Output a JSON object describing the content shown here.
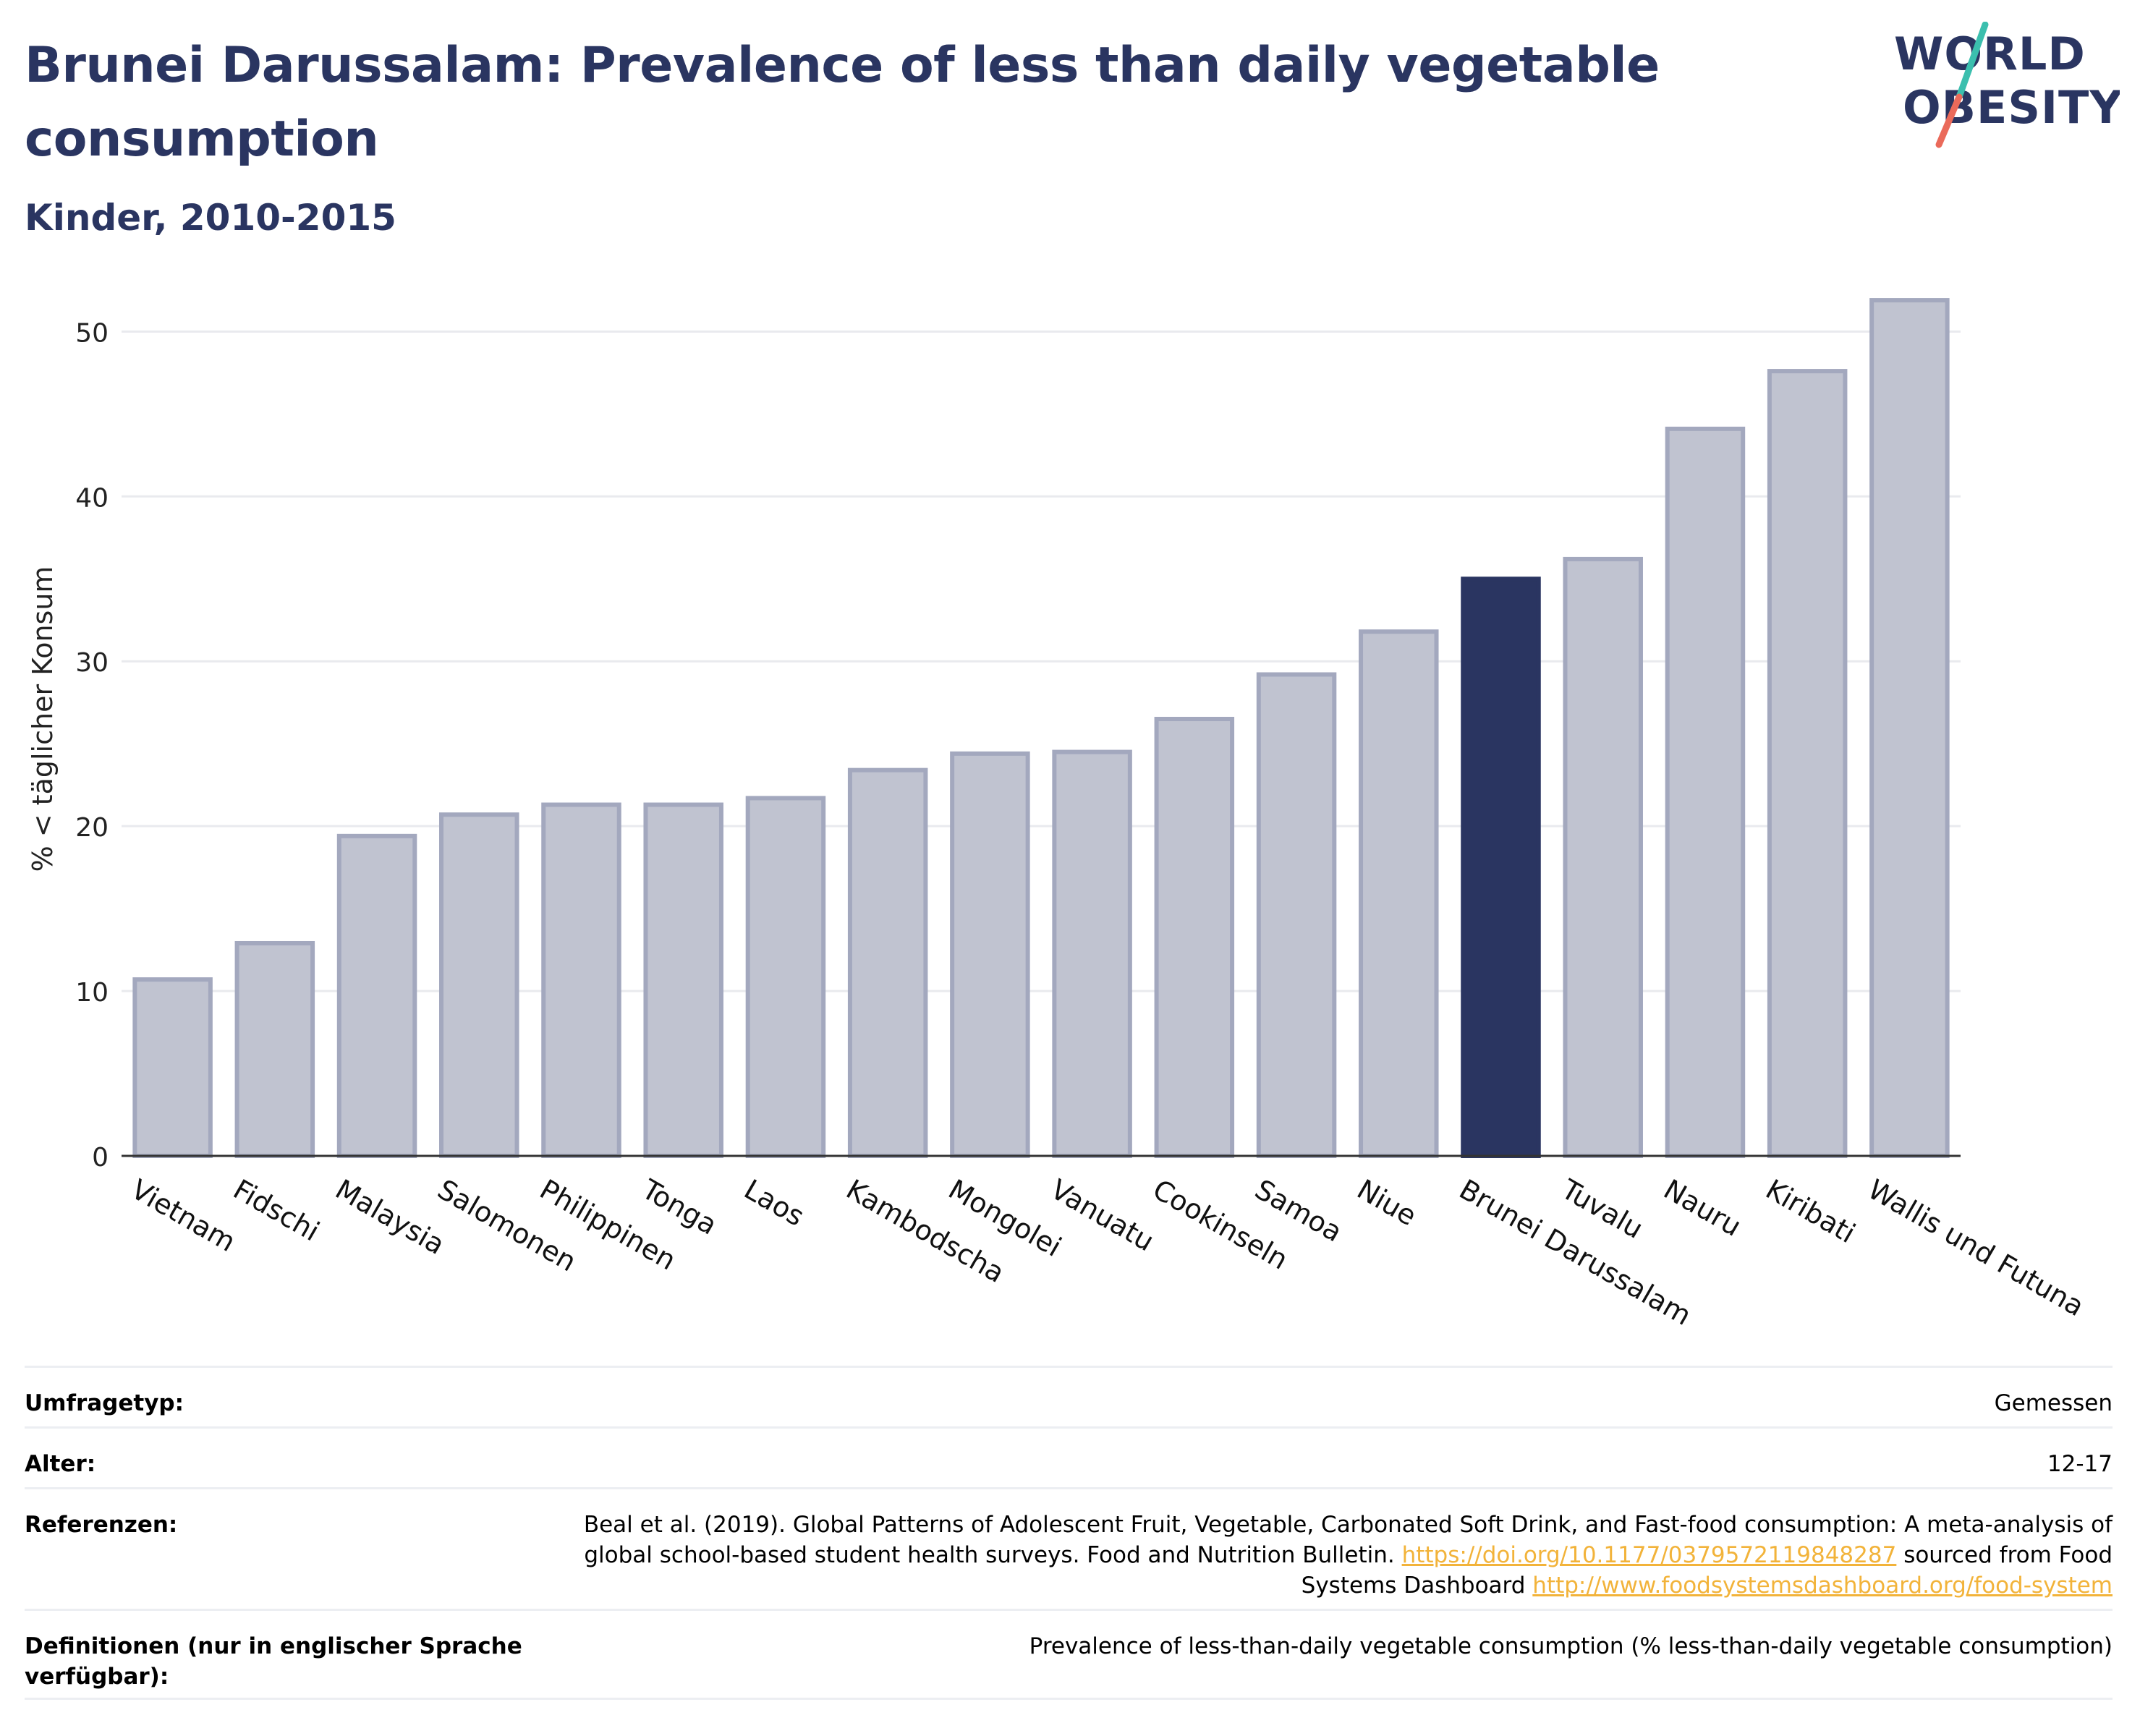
{
  "header": {
    "title": "Brunei Darussalam: Prevalence of less than daily vegetable consumption",
    "subtitle": "Kinder, 2010-2015"
  },
  "logo": {
    "line1": "WORLD",
    "line2": "OBESITY",
    "text_color": "#2a3561",
    "slash_top_color": "#3bbfae",
    "slash_bottom_color": "#ea6a5a"
  },
  "colors": {
    "bar": "#c0c3d0",
    "bar_border": "#a3a8be",
    "highlight": "#2a3561"
  },
  "chart_data": {
    "type": "bar",
    "ylabel": "% < täglicher Konsum",
    "ylim": [
      0,
      53
    ],
    "yticks": [
      0,
      10,
      20,
      30,
      40,
      50
    ],
    "grid": true,
    "highlight": "Brunei Darussalam",
    "categories": [
      "Vietnam",
      "Fidschi",
      "Malaysia",
      "Salomonen",
      "Philippinen",
      "Tonga",
      "Laos",
      "Kambodscha",
      "Mongolei",
      "Vanuatu",
      "Cookinseln",
      "Samoa",
      "Niue",
      "Brunei Darussalam",
      "Tuvalu",
      "Nauru",
      "Kiribati",
      "Wallis und Futuna"
    ],
    "values": [
      10.7,
      12.9,
      19.4,
      20.7,
      21.3,
      21.3,
      21.7,
      23.4,
      24.4,
      24.5,
      26.5,
      29.2,
      31.8,
      35.0,
      36.2,
      44.1,
      47.6,
      51.9
    ]
  },
  "meta": [
    {
      "label": "Umfragetyp:",
      "value": "Gemessen"
    },
    {
      "label": "Alter:",
      "value": "12-17"
    },
    {
      "label": "Referenzen:",
      "text1": "Beal et al. (2019). Global Patterns of Adolescent Fruit, Vegetable, Carbonated Soft Drink, and Fast-food consumption: A meta-analysis of global school-based student health surveys. Food and Nutrition Bulletin.",
      "link1": "https://doi.org/10.1177/0379572119848287",
      "text2": "sourced from Food Systems Dashboard",
      "link2": "http://www.foodsystemsdashboard.org/food-system"
    },
    {
      "label": "Definitionen (nur in englischer Sprache verfügbar):",
      "value": "Prevalence of less-than-daily vegetable consumption (% less-than-daily vegetable consumption)"
    }
  ]
}
